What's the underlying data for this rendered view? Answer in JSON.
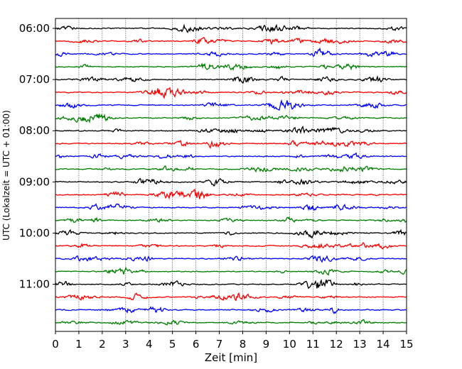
{
  "chart_data": {
    "type": "line",
    "title": "",
    "xlabel": "Zeit  [min]",
    "ylabel": "UTC (Lokalzeit = UTC + 01:00)",
    "xlim": [
      0,
      15
    ],
    "x_ticks": [
      0,
      1,
      2,
      3,
      4,
      5,
      6,
      7,
      8,
      9,
      10,
      11,
      12,
      13,
      14,
      15
    ],
    "y_tick_labels": [
      "06:00",
      "07:00",
      "08:00",
      "09:00",
      "10:00",
      "11:00"
    ],
    "traces_per_hour": 4,
    "trace_start_times": [
      "06:00",
      "06:15",
      "06:30",
      "06:45",
      "07:00",
      "07:15",
      "07:30",
      "07:45",
      "08:00",
      "08:15",
      "08:30",
      "08:45",
      "09:00",
      "09:15",
      "09:30",
      "09:45",
      "10:00",
      "10:15",
      "10:30",
      "10:45",
      "11:00",
      "11:15",
      "11:30",
      "11:45"
    ],
    "trace_color_cycle": [
      "#000000",
      "#ff0000",
      "#0000ff",
      "#007f00"
    ],
    "grid": "vertical dotted lines at each minute",
    "legend": "none"
  }
}
